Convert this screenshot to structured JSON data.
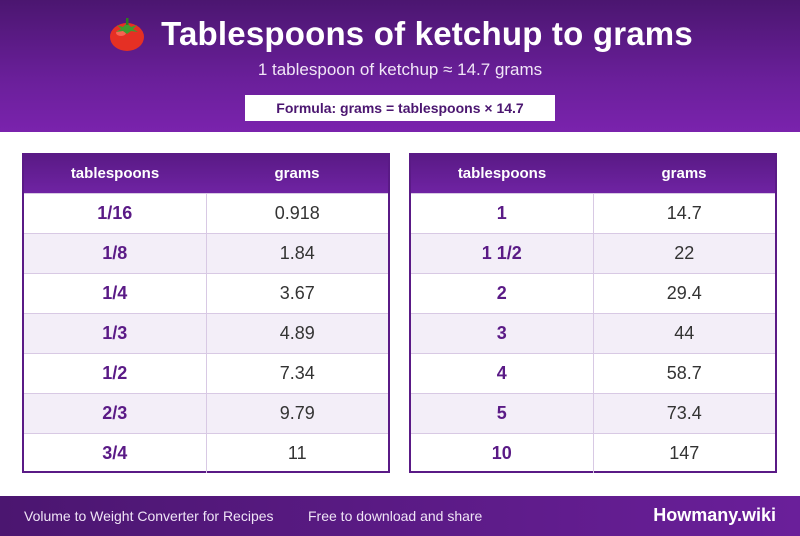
{
  "header": {
    "icon": "tomato-icon",
    "title": "Tablespoons of ketchup to grams",
    "subtitle": "1 tablespoon of ketchup ≈ 14.7 grams",
    "formula": "Formula: grams = tablespoons × 14.7"
  },
  "tables": {
    "left": {
      "headers": [
        "tablespoons",
        "grams"
      ],
      "rows": [
        [
          "1/16",
          "0.918"
        ],
        [
          "1/8",
          "1.84"
        ],
        [
          "1/4",
          "3.67"
        ],
        [
          "1/3",
          "4.89"
        ],
        [
          "1/2",
          "7.34"
        ],
        [
          "2/3",
          "9.79"
        ],
        [
          "3/4",
          "11"
        ]
      ]
    },
    "right": {
      "headers": [
        "tablespoons",
        "grams"
      ],
      "rows": [
        [
          "1",
          "14.7"
        ],
        [
          "1 1/2",
          "22"
        ],
        [
          "2",
          "29.4"
        ],
        [
          "3",
          "44"
        ],
        [
          "4",
          "58.7"
        ],
        [
          "5",
          "73.4"
        ],
        [
          "10",
          "147"
        ]
      ]
    }
  },
  "footer": {
    "left_text": "Volume to Weight Converter for Recipes",
    "middle_text": "Free to download and share",
    "brand": "Howmany.wiki"
  },
  "colors": {
    "primary": "#5a1a86",
    "header_dark": "#4b1670",
    "alt_row": "#f3eef8"
  }
}
